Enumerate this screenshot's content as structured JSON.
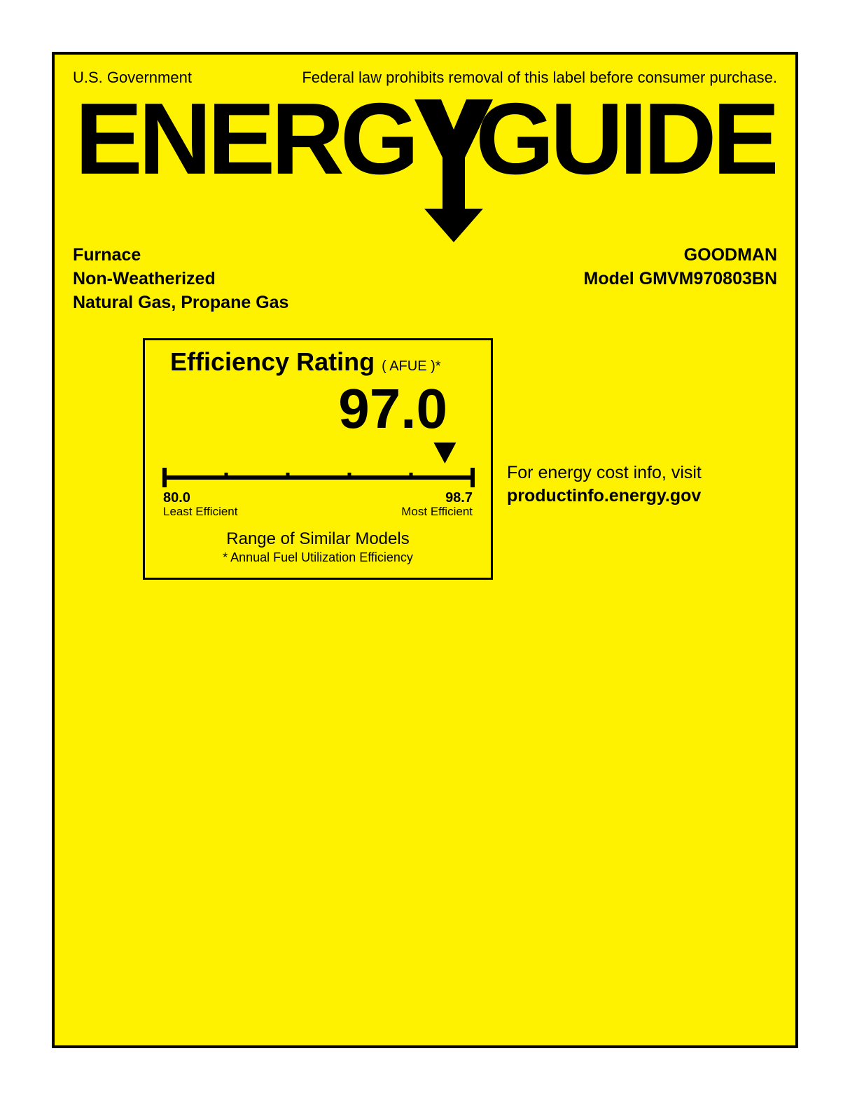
{
  "colors": {
    "background": "#fff200",
    "border": "#000000",
    "text": "#000000"
  },
  "header": {
    "left": "U.S. Government",
    "right": "Federal law prohibits removal of this label before consumer purchase."
  },
  "logo_text": "ENERGYGUIDE",
  "product": {
    "type": "Furnace",
    "weatherization": "Non-Weatherized",
    "fuel": "Natural Gas, Propane Gas",
    "manufacturer": "GOODMAN",
    "model_label": "Model GMVM970803BN"
  },
  "rating": {
    "title": "Efficiency Rating",
    "subtitle": "( AFUE )*",
    "value": "97.0",
    "scale": {
      "min_value": "80.0",
      "min_label": "Least Efficient",
      "max_value": "98.7",
      "max_label": "Most Efficient",
      "pointer_fraction": 0.91,
      "ticks": 5
    },
    "range_text": "Range of Similar Models",
    "afue_note": "* Annual Fuel Utilization Efficiency"
  },
  "cost_info": {
    "line1": "For energy cost info, visit",
    "url": "productinfo.energy.gov"
  }
}
